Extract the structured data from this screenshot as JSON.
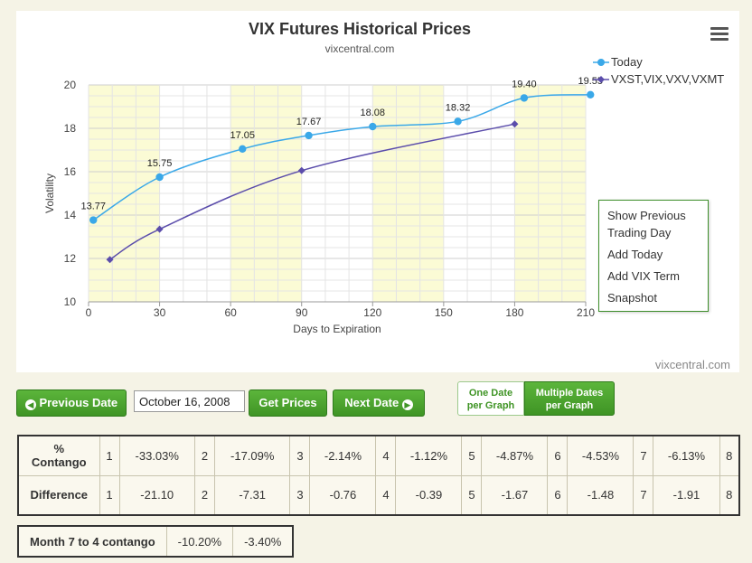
{
  "chart_data": {
    "type": "line",
    "title": "VIX Futures Historical Prices",
    "subtitle": "vixcentral.com",
    "credit": "vixcentral.com",
    "xlabel": "Days to Expiration",
    "ylabel": "Volatility",
    "xlim": [
      0,
      210
    ],
    "ylim": [
      10,
      20
    ],
    "xticks": [
      0,
      30,
      60,
      90,
      120,
      150,
      180,
      210
    ],
    "yticks": [
      10,
      12,
      14,
      16,
      18,
      20
    ],
    "legend_position": "top-right",
    "shaded_bands": [
      [
        0,
        30
      ],
      [
        60,
        90
      ],
      [
        120,
        150
      ],
      [
        180,
        210
      ]
    ],
    "band_color": "#fbfbd5",
    "series": [
      {
        "name": "Today",
        "color": "#3aa8e8",
        "marker": "circle",
        "x": [
          2,
          30,
          65,
          93,
          120,
          156,
          184,
          212
        ],
        "y": [
          13.77,
          15.75,
          17.05,
          17.67,
          18.08,
          18.32,
          19.4,
          19.55
        ],
        "labels": [
          "13.77",
          "15.75",
          "17.05",
          "17.67",
          "18.08",
          "18.32",
          "19.40",
          "19.55"
        ]
      },
      {
        "name": "VXST,VIX,VXV,VXMT",
        "color": "#5b4dab",
        "marker": "diamond",
        "x": [
          9,
          30,
          90,
          180
        ],
        "y": [
          11.95,
          13.35,
          16.05,
          18.2
        ]
      }
    ]
  },
  "menu": {
    "items": [
      "Show Previous Trading Day",
      "Add Today",
      "Add VIX Term",
      "Snapshot"
    ]
  },
  "controls": {
    "prev_label": "Previous Date",
    "date_value": "October 16, 2008",
    "get_label": "Get Prices",
    "next_label": "Next Date",
    "toggle_one_l1": "One Date",
    "toggle_one_l2": "per Graph",
    "toggle_multi_l1": "Multiple Dates",
    "toggle_multi_l2": "per Graph",
    "accent": "#3f9425"
  },
  "table": {
    "contango_head_1": "%",
    "contango_head_2": "Contango",
    "difference_head": "Difference",
    "months": [
      "1",
      "2",
      "3",
      "4",
      "5",
      "6",
      "7",
      "8"
    ],
    "contango": [
      "-33.03%",
      "-17.09%",
      "-2.14%",
      "-1.12%",
      "-4.87%",
      "-4.53%",
      "-6.13%"
    ],
    "difference": [
      "-21.10",
      "-7.31",
      "-0.76",
      "-0.39",
      "-1.67",
      "-1.48",
      "-1.91"
    ]
  },
  "month_contango": {
    "label": "Month 7 to 4 contango",
    "values": [
      "-10.20%",
      "-3.40%"
    ]
  }
}
